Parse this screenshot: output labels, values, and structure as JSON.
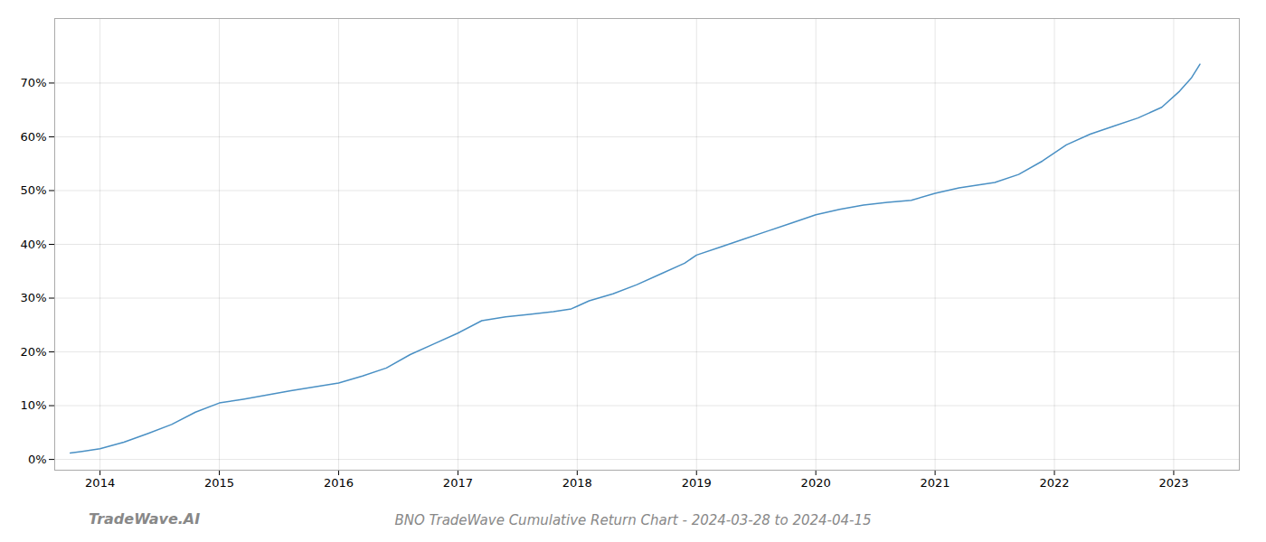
{
  "chart_data": {
    "type": "line",
    "title": "BNO TradeWave Cumulative Return Chart - 2024-03-28 to 2024-04-15",
    "annotations": [
      "TradeWave.AI"
    ],
    "color": "#4a90c4",
    "grid": true,
    "xlim": [
      2013.62,
      2023.55
    ],
    "xticks": [
      2014,
      2015,
      2016,
      2017,
      2018,
      2019,
      2020,
      2021,
      2022,
      2023
    ],
    "ylim": [
      -2,
      82
    ],
    "yticks": [
      {
        "value": 0,
        "label": "0%"
      },
      {
        "value": 10,
        "label": "10%"
      },
      {
        "value": 20,
        "label": "20%"
      },
      {
        "value": 30,
        "label": "30%"
      },
      {
        "value": 40,
        "label": "40%"
      },
      {
        "value": 50,
        "label": "50%"
      },
      {
        "value": 60,
        "label": "60%"
      },
      {
        "value": 70,
        "label": "70%"
      }
    ],
    "x": [
      2013.75,
      2013.85,
      2014.0,
      2014.2,
      2014.4,
      2014.6,
      2014.8,
      2015.0,
      2015.2,
      2015.4,
      2015.6,
      2015.8,
      2016.0,
      2016.2,
      2016.4,
      2016.6,
      2016.8,
      2017.0,
      2017.2,
      2017.4,
      2017.6,
      2017.8,
      2017.95,
      2018.0,
      2018.1,
      2018.3,
      2018.5,
      2018.7,
      2018.9,
      2019.0,
      2019.2,
      2019.4,
      2019.6,
      2019.8,
      2020.0,
      2020.2,
      2020.4,
      2020.6,
      2020.8,
      2021.0,
      2021.2,
      2021.35,
      2021.5,
      2021.7,
      2021.9,
      2022.1,
      2022.3,
      2022.5,
      2022.7,
      2022.9,
      2023.05,
      2023.15,
      2023.22
    ],
    "values": [
      1.2,
      1.5,
      2.0,
      3.2,
      4.8,
      6.5,
      8.8,
      10.5,
      11.2,
      12.0,
      12.8,
      13.5,
      14.2,
      15.5,
      17.0,
      19.5,
      21.5,
      23.5,
      25.8,
      26.5,
      27.0,
      27.5,
      28.0,
      28.5,
      29.5,
      30.8,
      32.5,
      34.5,
      36.5,
      38.0,
      39.5,
      41.0,
      42.5,
      44.0,
      45.5,
      46.5,
      47.3,
      47.8,
      48.2,
      49.5,
      50.5,
      51.0,
      51.5,
      53.0,
      55.5,
      58.5,
      60.5,
      62.0,
      63.5,
      65.5,
      68.5,
      71.0,
      73.5
    ]
  }
}
